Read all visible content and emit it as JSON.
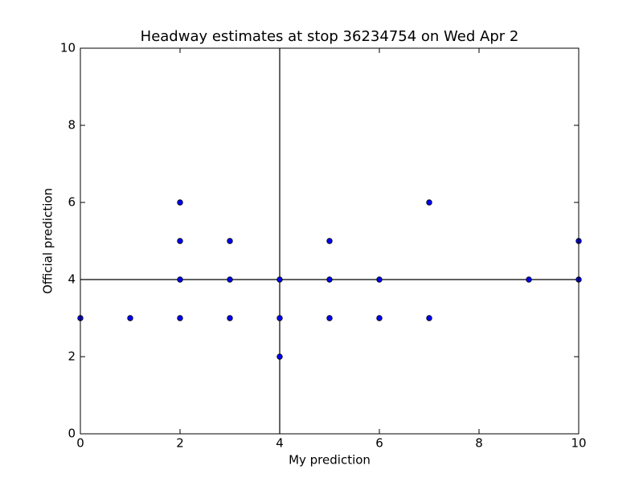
{
  "chart_data": {
    "type": "scatter",
    "title": "Headway estimates at stop 36234754 on Wed Apr 2",
    "xlabel": "My prediction",
    "ylabel": "Official prediction",
    "x": [
      0,
      1,
      2,
      2,
      2,
      2,
      3,
      3,
      3,
      4,
      4,
      4,
      5,
      5,
      5,
      6,
      6,
      7,
      7,
      9,
      10,
      10
    ],
    "values": [
      3,
      3,
      6,
      5,
      4,
      3,
      5,
      4,
      3,
      4,
      3,
      2,
      5,
      4,
      3,
      4,
      3,
      6,
      3,
      4,
      5,
      4
    ],
    "color": "#0000ff",
    "vline": 4,
    "hline": 4,
    "xlim": [
      0,
      10
    ],
    "ylim": [
      0,
      10
    ],
    "xticks": [
      0,
      2,
      4,
      6,
      8,
      10
    ],
    "yticks": [
      0,
      2,
      4,
      6,
      8,
      10
    ],
    "grid": false
  }
}
